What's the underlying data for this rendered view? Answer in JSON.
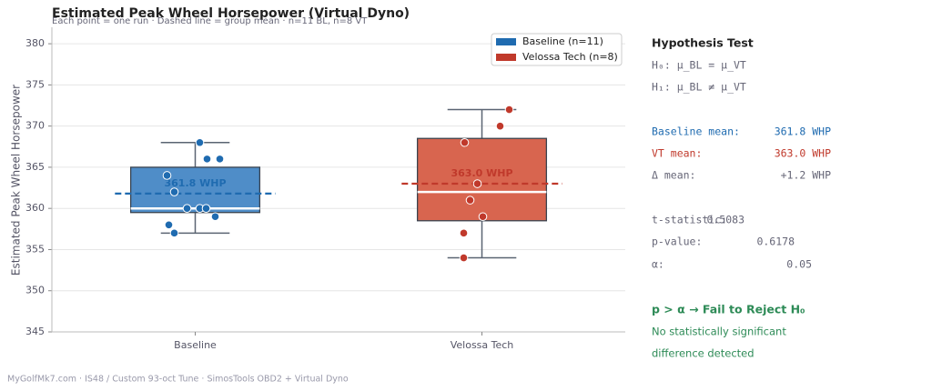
{
  "chart_data": {
    "type": "box",
    "title": "Estimated Peak Wheel Horsepower (Virtual Dyno)",
    "subtitle": "Each point = one run  ·  Dashed line = group mean  ·  n=11 BL, n=8 VT",
    "y_label": "Estimated Peak Wheel Horsepower",
    "categories": [
      "Baseline",
      "Velossa Tech"
    ],
    "series": [
      {
        "name": "Baseline (n=11)",
        "color": "#1f6bb0",
        "box_color": "#4f8dc8",
        "values": [
          368,
          366,
          366,
          364,
          362,
          360,
          360,
          360,
          359,
          358,
          357
        ],
        "whisker_low": 357,
        "q1": 359.5,
        "median": 360,
        "q3": 365,
        "whisker_high": 368,
        "mean": 361.8,
        "mean_label": "361.8 WHP"
      },
      {
        "name": "Velossa Tech (n=8)",
        "color": "#c0392b",
        "box_color": "#d8654f",
        "values": [
          372,
          370,
          368,
          363,
          361,
          359,
          357,
          354
        ],
        "whisker_low": 354,
        "q1": 358.5,
        "median": 362,
        "q3": 368.5,
        "whisker_high": 372,
        "mean": 363.0,
        "mean_label": "363.0 WHP"
      }
    ],
    "ylim": [
      345,
      382
    ],
    "yticks": [
      345,
      350,
      355,
      360,
      365,
      370,
      375,
      380
    ],
    "grid": true,
    "legend": "upper right"
  },
  "stats_panel": {
    "title": "Hypothesis Test",
    "h0": "H₀: μ_BL = μ_VT",
    "h1": "H₁: μ_BL ≠ μ_VT",
    "rows": [
      {
        "label": "Baseline mean:",
        "value": "361.8 WHP"
      },
      {
        "label": "VT mean:",
        "value": "363.0 WHP"
      },
      {
        "label": "Δ mean:",
        "value": "+1.2 WHP"
      },
      {
        "label": "t-statistic:",
        "value": "0.5083"
      },
      {
        "label": "p-value:",
        "value": "0.6178"
      },
      {
        "label": "α:",
        "value": "0.05"
      }
    ],
    "conclusion": "p > α  →  Fail to Reject H₀",
    "note_lines": [
      "No statistically significant",
      "difference detected"
    ]
  },
  "footer": "MyGolfMk7.com  ·  IS48 / Custom 93-oct Tune  ·  SimosTools OBD2 + Virtual Dyno"
}
